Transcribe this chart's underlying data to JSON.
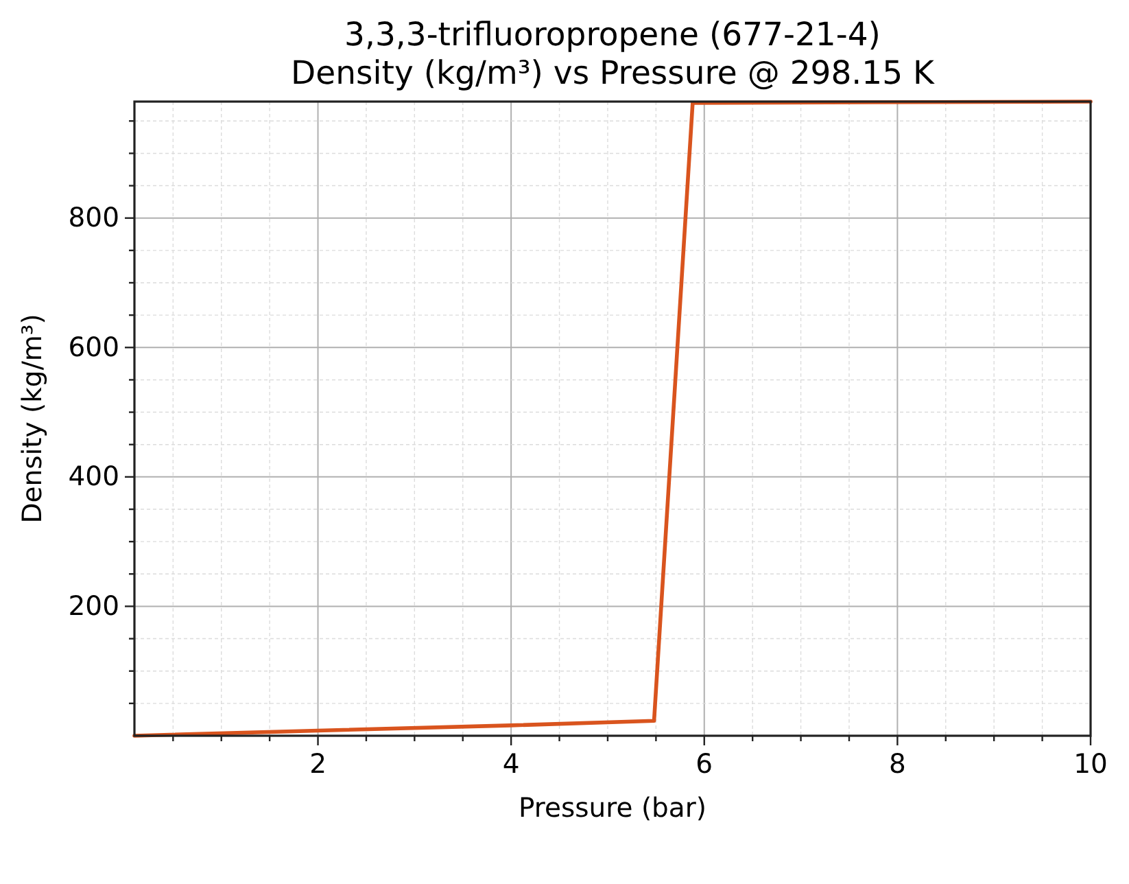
{
  "chart_data": {
    "type": "line",
    "title": "3,3,3-trifluoropropene (677-21-4)",
    "subtitle": "Density (kg/m³) vs Pressure @ 298.15 K",
    "xlabel": "Pressure (bar)",
    "ylabel": "Density (kg/m³)",
    "x": [
      0.1,
      2,
      4,
      5.48,
      5.88,
      10
    ],
    "series": [
      {
        "color": "#d9541e",
        "values": [
          0,
          8,
          16,
          23,
          978,
          980
        ]
      }
    ],
    "xlim": [
      0.1,
      10
    ],
    "ylim": [
      0,
      980
    ],
    "xticks": [
      {
        "value": 0.5,
        "label": null
      },
      {
        "value": 1,
        "label": null
      },
      {
        "value": 1.5,
        "label": null
      },
      2,
      {
        "value": 2.5,
        "label": null
      },
      {
        "value": 3,
        "label": null
      },
      {
        "value": 3.5,
        "label": null
      },
      4,
      {
        "value": 4.5,
        "label": null
      },
      {
        "value": 5,
        "label": null
      },
      {
        "value": 5.5,
        "label": null
      },
      6,
      {
        "value": 6.5,
        "label": null
      },
      {
        "value": 7,
        "label": null
      },
      {
        "value": 7.5,
        "label": null
      },
      8,
      {
        "value": 8.5,
        "label": null
      },
      {
        "value": 9,
        "label": null
      },
      {
        "value": 9.5,
        "label": null
      },
      10
    ],
    "yticks": [
      {
        "value": 50,
        "label": null
      },
      {
        "value": 100,
        "label": null
      },
      {
        "value": 150,
        "label": null
      },
      200,
      {
        "value": 250,
        "label": null
      },
      {
        "value": 300,
        "label": null
      },
      {
        "value": 350,
        "label": null
      },
      400,
      {
        "value": 450,
        "label": null
      },
      {
        "value": 500,
        "label": null
      },
      {
        "value": 550,
        "label": null
      },
      600,
      {
        "value": 650,
        "label": null
      },
      {
        "value": 700,
        "label": null
      },
      {
        "value": 750,
        "label": null
      },
      800,
      {
        "value": 850,
        "label": null
      },
      {
        "value": 900,
        "label": null
      },
      {
        "value": 950,
        "label": null
      }
    ],
    "grid": true
  }
}
